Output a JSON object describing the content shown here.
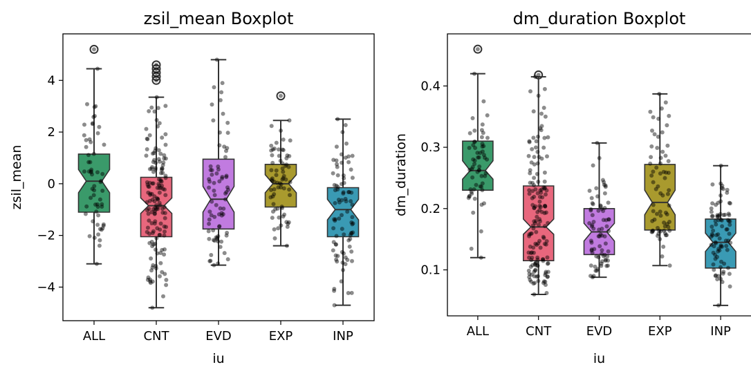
{
  "chart_data": [
    {
      "type": "boxplot",
      "title": "zsil_mean Boxplot",
      "xlabel": "iu",
      "ylabel": "zsil_mean",
      "ylim": [
        -5.3,
        5.8
      ],
      "yticks": [
        -4,
        -2,
        0,
        2,
        4
      ],
      "ytick_labels": [
        "−4",
        "−2",
        "0",
        "2",
        "4"
      ],
      "categories": [
        "ALL",
        "CNT",
        "EVD",
        "EXP",
        "INP"
      ],
      "colors": [
        "#3a9a6a",
        "#e8677d",
        "#c17be0",
        "#a99a2e",
        "#3a9ab4"
      ],
      "boxes": [
        {
          "category": "ALL",
          "whisker_low": -3.1,
          "q1": -1.1,
          "median": 0.1,
          "q3": 1.15,
          "whisker_high": 4.45,
          "notch_low": -0.35,
          "notch_high": 0.55,
          "fliers": [
            5.2
          ],
          "n": 60
        },
        {
          "category": "CNT",
          "whisker_low": -4.8,
          "q1": -2.05,
          "median": -0.85,
          "q3": 0.25,
          "whisker_high": 3.35,
          "notch_low": -1.15,
          "notch_high": -0.55,
          "fliers": [
            4.0,
            4.15,
            4.3,
            4.45,
            4.6
          ],
          "n": 150
        },
        {
          "category": "EVD",
          "whisker_low": -3.15,
          "q1": -1.75,
          "median": -0.6,
          "q3": 0.95,
          "whisker_high": 4.8,
          "notch_low": -1.1,
          "notch_high": -0.1,
          "fliers": [],
          "n": 75
        },
        {
          "category": "EXP",
          "whisker_low": -2.4,
          "q1": -0.9,
          "median": 0.0,
          "q3": 0.75,
          "whisker_high": 2.45,
          "notch_low": -0.35,
          "notch_high": 0.35,
          "fliers": [
            3.4
          ],
          "n": 70
        },
        {
          "category": "INP",
          "whisker_low": -4.7,
          "q1": -2.05,
          "median": -1.0,
          "q3": -0.15,
          "whisker_high": 2.5,
          "notch_low": -1.4,
          "notch_high": -0.6,
          "fliers": [],
          "n": 85
        }
      ]
    },
    {
      "type": "boxplot",
      "title": "dm_duration Boxplot",
      "xlabel": "iu",
      "ylabel": "dm_duration",
      "ylim": [
        0.025,
        0.485
      ],
      "yticks": [
        0.1,
        0.2,
        0.3,
        0.4
      ],
      "ytick_labels": [
        "0.1",
        "0.2",
        "0.3",
        "0.4"
      ],
      "categories": [
        "ALL",
        "CNT",
        "EVD",
        "EXP",
        "INP"
      ],
      "colors": [
        "#3a9a6a",
        "#e8677d",
        "#c17be0",
        "#a99a2e",
        "#3a9ab4"
      ],
      "boxes": [
        {
          "category": "ALL",
          "whisker_low": 0.12,
          "q1": 0.23,
          "median": 0.262,
          "q3": 0.31,
          "whisker_high": 0.42,
          "notch_low": 0.248,
          "notch_high": 0.278,
          "fliers": [
            0.46
          ],
          "n": 60
        },
        {
          "category": "CNT",
          "whisker_low": 0.06,
          "q1": 0.115,
          "median": 0.17,
          "q3": 0.237,
          "whisker_high": 0.415,
          "notch_low": 0.158,
          "notch_high": 0.183,
          "fliers": [
            0.418
          ],
          "n": 150
        },
        {
          "category": "EVD",
          "whisker_low": 0.088,
          "q1": 0.125,
          "median": 0.162,
          "q3": 0.2,
          "whisker_high": 0.307,
          "notch_low": 0.147,
          "notch_high": 0.176,
          "fliers": [],
          "n": 75
        },
        {
          "category": "EXP",
          "whisker_low": 0.107,
          "q1": 0.165,
          "median": 0.21,
          "q3": 0.272,
          "whisker_high": 0.387,
          "notch_low": 0.19,
          "notch_high": 0.23,
          "fliers": [],
          "n": 70
        },
        {
          "category": "INP",
          "whisker_low": 0.042,
          "q1": 0.103,
          "median": 0.145,
          "q3": 0.183,
          "whisker_high": 0.27,
          "notch_low": 0.13,
          "notch_high": 0.16,
          "fliers": [],
          "n": 85
        }
      ]
    }
  ]
}
